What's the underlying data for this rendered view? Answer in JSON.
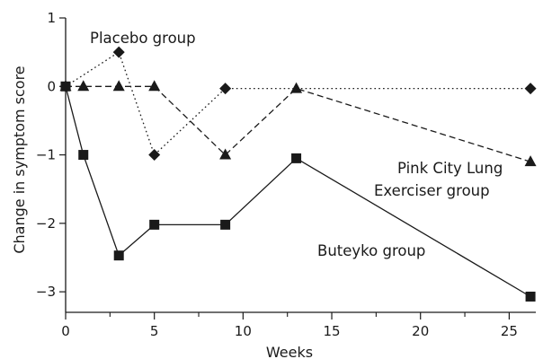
{
  "chart_data": {
    "type": "line",
    "title": "",
    "xlabel": "Weeks",
    "ylabel": "Change in symptom score",
    "xlim": [
      0,
      26.5
    ],
    "ylim": [
      -3.3,
      1
    ],
    "xticks": [
      0,
      5,
      10,
      15,
      20,
      25
    ],
    "yticks": [
      1,
      0,
      -1,
      -2,
      -3
    ],
    "grid": false,
    "legend": "none",
    "series": [
      {
        "annotation": "Placebo group",
        "marker": "diamond",
        "dash": "dotted",
        "color": "#1a1a1a",
        "x": [
          0,
          3,
          5,
          9,
          26.2
        ],
        "y": [
          0,
          0.5,
          -1.0,
          -0.03,
          -0.03
        ]
      },
      {
        "annotation": "Pink City Lung Exerciser group",
        "annotation_lines": [
          "Pink City Lung",
          "Exerciser group"
        ],
        "marker": "triangle",
        "dash": "dashed",
        "color": "#1a1a1a",
        "x": [
          0,
          1,
          3,
          5,
          9,
          13,
          26.2
        ],
        "y": [
          0,
          0,
          0,
          0,
          -1.0,
          -0.03,
          -1.1
        ]
      },
      {
        "annotation": "Buteyko group",
        "marker": "square",
        "dash": "solid",
        "color": "#1a1a1a",
        "x": [
          0,
          1,
          3,
          5,
          9,
          13,
          26.2
        ],
        "y": [
          0,
          -1.0,
          -2.47,
          -2.02,
          -2.02,
          -1.05,
          -3.07
        ]
      }
    ]
  }
}
